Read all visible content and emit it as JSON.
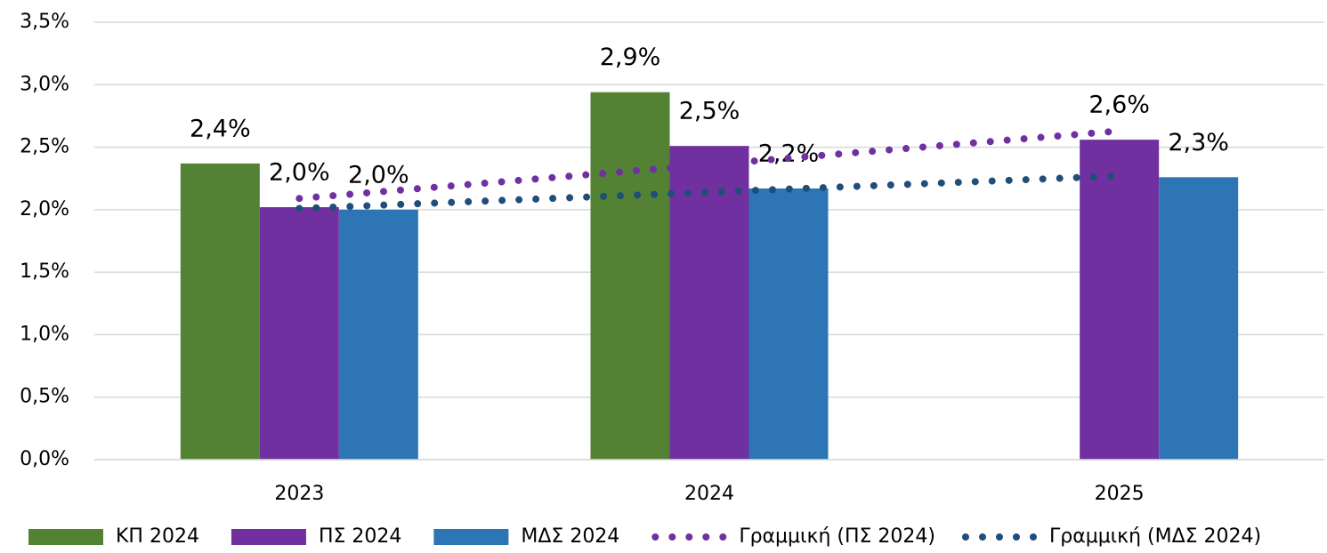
{
  "chart_data": {
    "type": "bar",
    "categories": [
      "2023",
      "2024",
      "2025"
    ],
    "series": [
      {
        "name": "ΚΠ 2024",
        "color": "#548235",
        "values": [
          2.37,
          2.94,
          null
        ],
        "value_labels": [
          "2,4%",
          "2,9%",
          null
        ]
      },
      {
        "name": "ΠΣ 2024",
        "color": "#7030a0",
        "values": [
          2.02,
          2.51,
          2.56
        ],
        "value_labels": [
          "2,0%",
          "2,5%",
          "2,6%"
        ]
      },
      {
        "name": "ΜΔΣ 2024",
        "color": "#2e75b6",
        "values": [
          2.0,
          2.17,
          2.26
        ],
        "value_labels": [
          "2,0%",
          "2,2%",
          "2,3%"
        ]
      }
    ],
    "trendlines": [
      {
        "name": "Γραμμική (ΠΣ 2024)",
        "color": "#7030a0",
        "values": [
          2.09,
          2.36,
          2.63
        ]
      },
      {
        "name": "Γραμμική (ΜΔΣ 2024)",
        "color": "#1f4e79",
        "values": [
          2.01,
          2.14,
          2.27
        ]
      }
    ],
    "ylim": [
      0,
      3.5
    ],
    "yticks": [
      {
        "value": 0,
        "label": "0,0%"
      },
      {
        "value": 0.5,
        "label": "0,5%"
      },
      {
        "value": 1,
        "label": "1,0%"
      },
      {
        "value": 1.5,
        "label": "1,5%"
      },
      {
        "value": 2,
        "label": "2,0%"
      },
      {
        "value": 2.5,
        "label": "2,5%"
      },
      {
        "value": 3,
        "label": "3,0%"
      },
      {
        "value": 3.5,
        "label": "3,5%"
      }
    ],
    "grid": true,
    "legend": "bottom"
  }
}
